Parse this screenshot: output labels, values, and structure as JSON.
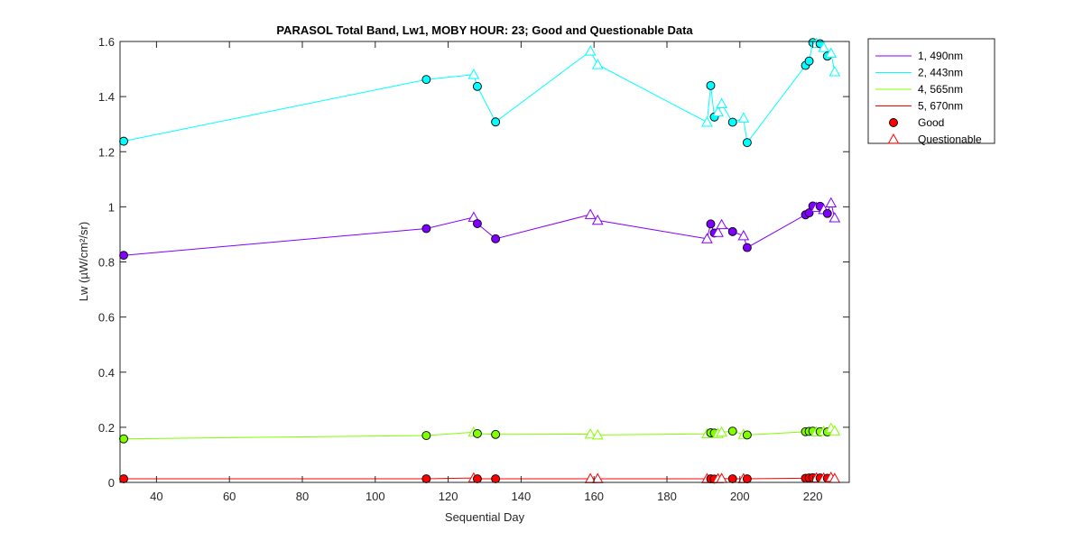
{
  "chart_data": {
    "type": "line",
    "title": "PARASOL Total Band,  Lw1, MOBY HOUR: 23;  Good and Questionable Data",
    "xlabel": "Sequential Day",
    "ylabel": "Lw (µW/cm²/sr)",
    "xlim": [
      30,
      230
    ],
    "ylim": [
      0,
      1.6
    ],
    "xticks": [
      40,
      60,
      80,
      100,
      120,
      140,
      160,
      180,
      200,
      220
    ],
    "yticks": [
      0,
      0.2,
      0.4,
      0.6,
      0.8,
      1,
      1.2,
      1.4,
      1.6
    ],
    "xtick_labels": [
      "40",
      "60",
      "80",
      "100",
      "120",
      "140",
      "160",
      "180",
      "200",
      "220"
    ],
    "ytick_labels": [
      "0",
      "0.2",
      "0.4",
      "0.6",
      "0.8",
      "1",
      "1.2",
      "1.4",
      "1.6"
    ],
    "legend_position": "outside-top-right",
    "series": [
      {
        "name": "1, 490nm",
        "color": "#8000ff",
        "x": [
          31,
          114,
          127,
          128,
          133,
          159,
          161,
          191,
          192,
          193,
          194,
          195,
          198,
          201,
          202,
          218,
          219,
          220,
          221,
          222,
          223,
          224,
          225,
          226
        ],
        "values": [
          0.824,
          0.921,
          0.962,
          0.939,
          0.884,
          0.972,
          0.951,
          0.884,
          0.938,
          0.905,
          0.907,
          0.935,
          0.91,
          0.895,
          0.852,
          0.971,
          0.978,
          1.003,
          0.998,
          1.002,
          0.99,
          0.976,
          1.014,
          0.96
        ],
        "quality": [
          "good",
          "good",
          "questionable",
          "good",
          "good",
          "questionable",
          "questionable",
          "questionable",
          "good",
          "good",
          "questionable",
          "questionable",
          "good",
          "questionable",
          "good",
          "good",
          "good",
          "good",
          "questionable",
          "good",
          "questionable",
          "good",
          "questionable",
          "questionable"
        ]
      },
      {
        "name": "2, 443nm",
        "color": "#00ffff",
        "x": [
          31,
          114,
          127,
          128,
          133,
          159,
          161,
          191,
          192,
          193,
          194,
          195,
          198,
          201,
          202,
          218,
          219,
          220,
          221,
          222,
          223,
          224,
          225,
          226
        ],
        "values": [
          1.238,
          1.462,
          1.48,
          1.437,
          1.308,
          1.565,
          1.516,
          1.307,
          1.44,
          1.326,
          1.344,
          1.374,
          1.307,
          1.322,
          1.233,
          1.513,
          1.529,
          1.596,
          1.593,
          1.592,
          1.578,
          1.547,
          1.557,
          1.49
        ],
        "quality": [
          "good",
          "good",
          "questionable",
          "good",
          "good",
          "questionable",
          "questionable",
          "questionable",
          "good",
          "good",
          "questionable",
          "questionable",
          "good",
          "questionable",
          "good",
          "good",
          "good",
          "good",
          "questionable",
          "good",
          "questionable",
          "good",
          "questionable",
          "questionable"
        ]
      },
      {
        "name": "4, 565nm",
        "color": "#80ff00",
        "x": [
          31,
          114,
          127,
          128,
          133,
          159,
          161,
          191,
          192,
          193,
          194,
          195,
          198,
          201,
          202,
          218,
          219,
          220,
          221,
          222,
          223,
          224,
          225,
          226
        ],
        "values": [
          0.158,
          0.17,
          0.182,
          0.177,
          0.174,
          0.175,
          0.172,
          0.176,
          0.18,
          0.179,
          0.177,
          0.182,
          0.186,
          0.174,
          0.172,
          0.184,
          0.185,
          0.186,
          0.183,
          0.184,
          0.185,
          0.183,
          0.196,
          0.187
        ],
        "quality": [
          "good",
          "good",
          "questionable",
          "good",
          "good",
          "questionable",
          "questionable",
          "questionable",
          "good",
          "good",
          "questionable",
          "questionable",
          "good",
          "questionable",
          "good",
          "good",
          "good",
          "good",
          "questionable",
          "good",
          "questionable",
          "good",
          "questionable",
          "questionable"
        ]
      },
      {
        "name": "5, 670nm",
        "color": "#ff0000",
        "x": [
          31,
          114,
          127,
          128,
          133,
          159,
          161,
          191,
          192,
          193,
          194,
          195,
          198,
          201,
          202,
          218,
          219,
          220,
          221,
          222,
          223,
          224,
          225,
          226
        ],
        "values": [
          0.013,
          0.013,
          0.016,
          0.013,
          0.013,
          0.013,
          0.013,
          0.013,
          0.013,
          0.012,
          0.013,
          0.014,
          0.013,
          0.013,
          0.013,
          0.015,
          0.016,
          0.017,
          0.016,
          0.016,
          0.015,
          0.015,
          0.018,
          0.014
        ],
        "quality": [
          "good",
          "good",
          "questionable",
          "good",
          "good",
          "questionable",
          "questionable",
          "questionable",
          "good",
          "good",
          "questionable",
          "questionable",
          "good",
          "questionable",
          "good",
          "good",
          "good",
          "good",
          "questionable",
          "good",
          "questionable",
          "good",
          "questionable",
          "questionable"
        ]
      }
    ],
    "marker_legend": [
      {
        "name": "Good",
        "shape": "circle",
        "color": "#ff0000"
      },
      {
        "name": "Questionable",
        "shape": "triangle",
        "color": "#ff0000"
      }
    ]
  }
}
